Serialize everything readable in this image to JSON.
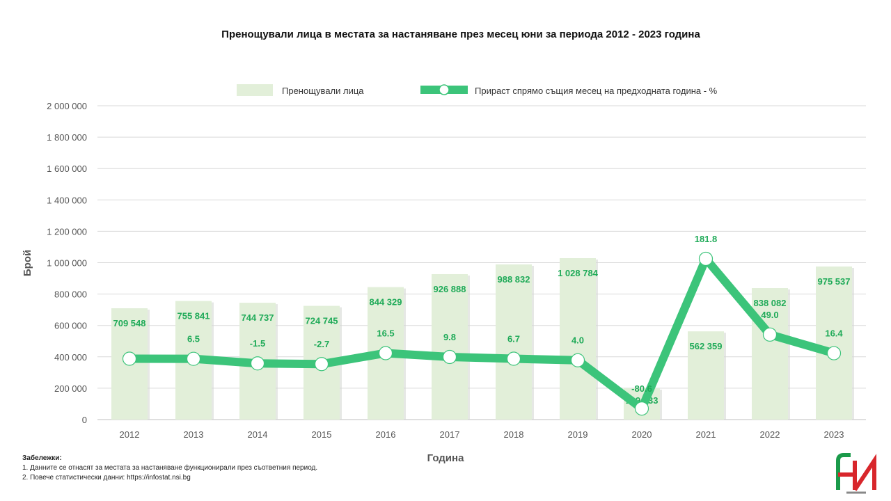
{
  "chart_data": {
    "type": "bar+line",
    "title": "Пренощували лица в местата за настаняване  през месец юни за периода 2012 - 2023 година",
    "xlabel": "Година",
    "ylabel": "Брой",
    "categories": [
      "2012",
      "2013",
      "2014",
      "2015",
      "2016",
      "2017",
      "2018",
      "2019",
      "2020",
      "2021",
      "2022",
      "2023"
    ],
    "ylim": [
      0,
      2000000
    ],
    "yticks": [
      "0",
      "200 000",
      "400 000",
      "600 000",
      "800 000",
      "1 000 000",
      "1 200 000",
      "1 400 000",
      "1 600 000",
      "1 800 000",
      "2 000 000"
    ],
    "grid": true,
    "legend_position": "top",
    "series": [
      {
        "name": "Пренощували лица",
        "type": "bar",
        "color": "#e2efd9",
        "values": [
          709548,
          755841,
          744737,
          724745,
          844329,
          926888,
          988832,
          1028784,
          199533,
          562359,
          838082,
          975537
        ],
        "labels": [
          "709 548",
          "755 841",
          "744 737",
          "724 745",
          "844 329",
          "926 888",
          "988 832",
          "1 028 784",
          "199 533",
          "562 359",
          "838 082",
          "975 537"
        ]
      },
      {
        "name": "Прираст спрямо същия месец на предходната година - %",
        "type": "line",
        "color": "#3cc47a",
        "secondary_axis": true,
        "values": [
          null,
          6.5,
          -1.5,
          -2.7,
          16.5,
          9.8,
          6.7,
          4.0,
          -80.6,
          181.8,
          49.0,
          16.4
        ],
        "labels": [
          "",
          "6.5",
          "-1.5",
          "-2.7",
          "16.5",
          "9.8",
          "6.7",
          "4.0",
          "-80.6",
          "181.8",
          "49.0",
          "16.4"
        ]
      }
    ]
  },
  "notes": {
    "heading": "Забележки:",
    "lines": [
      "1. Данните се отнасят за местата за настаняване функционирали през съответния период.",
      "2. Повече статистически данни: https://infostat.nsi.bg"
    ]
  },
  "logo": {
    "name": "nsi-logo",
    "colors": [
      "#1a9a4a",
      "#d8262b",
      "#888888"
    ]
  }
}
